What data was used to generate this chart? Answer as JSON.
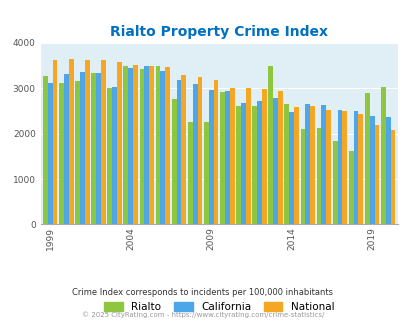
{
  "title": "Rialto Property Crime Index",
  "years": [
    1999,
    2000,
    2001,
    2002,
    2003,
    2004,
    2005,
    2006,
    2007,
    2008,
    2009,
    2010,
    2011,
    2012,
    2013,
    2014,
    2015,
    2016,
    2017,
    2018,
    2019,
    2020
  ],
  "rialto": [
    3270,
    3110,
    3160,
    3330,
    3010,
    3480,
    3420,
    3490,
    2760,
    2260,
    2260,
    2920,
    2600,
    2620,
    3500,
    2660,
    2110,
    2130,
    1840,
    1620,
    2900,
    3030
  ],
  "california": [
    3110,
    3310,
    3360,
    3330,
    3020,
    3440,
    3490,
    3380,
    3190,
    3100,
    2970,
    2950,
    2680,
    2710,
    2790,
    2470,
    2650,
    2640,
    2530,
    2500,
    2380,
    2360
  ],
  "national": [
    3620,
    3650,
    3630,
    3630,
    3590,
    3520,
    3490,
    3460,
    3290,
    3250,
    3190,
    3000,
    3010,
    2980,
    2950,
    2590,
    2620,
    2530,
    2490,
    2430,
    2200,
    2090
  ],
  "rialto_color": "#8dc63f",
  "california_color": "#4da6e8",
  "national_color": "#f5a623",
  "bg_color": "#e0eff5",
  "title_color": "#0070c0",
  "ylabel_max": 4000,
  "subtitle": "Crime Index corresponds to incidents per 100,000 inhabitants",
  "footer": "© 2025 CityRating.com - https://www.cityrating.com/crime-statistics/",
  "subtitle_color": "#333333",
  "footer_color": "#999999"
}
